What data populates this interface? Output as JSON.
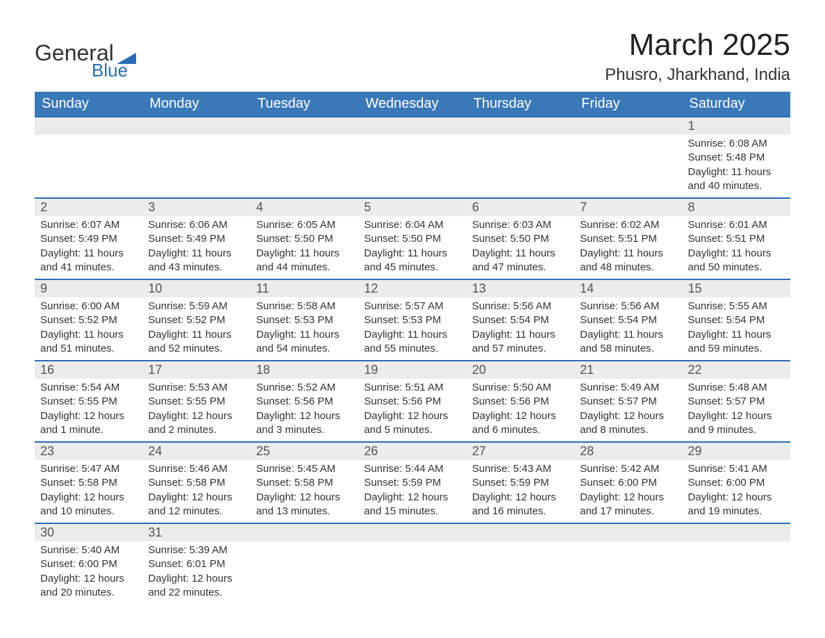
{
  "logo": {
    "text1": "General",
    "text2": "Blue",
    "brand_color": "#2a6db3"
  },
  "header": {
    "title": "March 2025",
    "location": "Phusro, Jharkhand, India"
  },
  "calendar": {
    "header_bg": "#3b78b8",
    "header_fg": "#ffffff",
    "daynum_bg": "#ececec",
    "row_border": "#2a6db3",
    "text_color": "#333333",
    "days": [
      "Sunday",
      "Monday",
      "Tuesday",
      "Wednesday",
      "Thursday",
      "Friday",
      "Saturday"
    ],
    "weeks": [
      [
        null,
        null,
        null,
        null,
        null,
        null,
        {
          "n": "1",
          "sr": "Sunrise: 6:08 AM",
          "ss": "Sunset: 5:48 PM",
          "d1": "Daylight: 11 hours",
          "d2": "and 40 minutes."
        }
      ],
      [
        {
          "n": "2",
          "sr": "Sunrise: 6:07 AM",
          "ss": "Sunset: 5:49 PM",
          "d1": "Daylight: 11 hours",
          "d2": "and 41 minutes."
        },
        {
          "n": "3",
          "sr": "Sunrise: 6:06 AM",
          "ss": "Sunset: 5:49 PM",
          "d1": "Daylight: 11 hours",
          "d2": "and 43 minutes."
        },
        {
          "n": "4",
          "sr": "Sunrise: 6:05 AM",
          "ss": "Sunset: 5:50 PM",
          "d1": "Daylight: 11 hours",
          "d2": "and 44 minutes."
        },
        {
          "n": "5",
          "sr": "Sunrise: 6:04 AM",
          "ss": "Sunset: 5:50 PM",
          "d1": "Daylight: 11 hours",
          "d2": "and 45 minutes."
        },
        {
          "n": "6",
          "sr": "Sunrise: 6:03 AM",
          "ss": "Sunset: 5:50 PM",
          "d1": "Daylight: 11 hours",
          "d2": "and 47 minutes."
        },
        {
          "n": "7",
          "sr": "Sunrise: 6:02 AM",
          "ss": "Sunset: 5:51 PM",
          "d1": "Daylight: 11 hours",
          "d2": "and 48 minutes."
        },
        {
          "n": "8",
          "sr": "Sunrise: 6:01 AM",
          "ss": "Sunset: 5:51 PM",
          "d1": "Daylight: 11 hours",
          "d2": "and 50 minutes."
        }
      ],
      [
        {
          "n": "9",
          "sr": "Sunrise: 6:00 AM",
          "ss": "Sunset: 5:52 PM",
          "d1": "Daylight: 11 hours",
          "d2": "and 51 minutes."
        },
        {
          "n": "10",
          "sr": "Sunrise: 5:59 AM",
          "ss": "Sunset: 5:52 PM",
          "d1": "Daylight: 11 hours",
          "d2": "and 52 minutes."
        },
        {
          "n": "11",
          "sr": "Sunrise: 5:58 AM",
          "ss": "Sunset: 5:53 PM",
          "d1": "Daylight: 11 hours",
          "d2": "and 54 minutes."
        },
        {
          "n": "12",
          "sr": "Sunrise: 5:57 AM",
          "ss": "Sunset: 5:53 PM",
          "d1": "Daylight: 11 hours",
          "d2": "and 55 minutes."
        },
        {
          "n": "13",
          "sr": "Sunrise: 5:56 AM",
          "ss": "Sunset: 5:54 PM",
          "d1": "Daylight: 11 hours",
          "d2": "and 57 minutes."
        },
        {
          "n": "14",
          "sr": "Sunrise: 5:56 AM",
          "ss": "Sunset: 5:54 PM",
          "d1": "Daylight: 11 hours",
          "d2": "and 58 minutes."
        },
        {
          "n": "15",
          "sr": "Sunrise: 5:55 AM",
          "ss": "Sunset: 5:54 PM",
          "d1": "Daylight: 11 hours",
          "d2": "and 59 minutes."
        }
      ],
      [
        {
          "n": "16",
          "sr": "Sunrise: 5:54 AM",
          "ss": "Sunset: 5:55 PM",
          "d1": "Daylight: 12 hours",
          "d2": "and 1 minute."
        },
        {
          "n": "17",
          "sr": "Sunrise: 5:53 AM",
          "ss": "Sunset: 5:55 PM",
          "d1": "Daylight: 12 hours",
          "d2": "and 2 minutes."
        },
        {
          "n": "18",
          "sr": "Sunrise: 5:52 AM",
          "ss": "Sunset: 5:56 PM",
          "d1": "Daylight: 12 hours",
          "d2": "and 3 minutes."
        },
        {
          "n": "19",
          "sr": "Sunrise: 5:51 AM",
          "ss": "Sunset: 5:56 PM",
          "d1": "Daylight: 12 hours",
          "d2": "and 5 minutes."
        },
        {
          "n": "20",
          "sr": "Sunrise: 5:50 AM",
          "ss": "Sunset: 5:56 PM",
          "d1": "Daylight: 12 hours",
          "d2": "and 6 minutes."
        },
        {
          "n": "21",
          "sr": "Sunrise: 5:49 AM",
          "ss": "Sunset: 5:57 PM",
          "d1": "Daylight: 12 hours",
          "d2": "and 8 minutes."
        },
        {
          "n": "22",
          "sr": "Sunrise: 5:48 AM",
          "ss": "Sunset: 5:57 PM",
          "d1": "Daylight: 12 hours",
          "d2": "and 9 minutes."
        }
      ],
      [
        {
          "n": "23",
          "sr": "Sunrise: 5:47 AM",
          "ss": "Sunset: 5:58 PM",
          "d1": "Daylight: 12 hours",
          "d2": "and 10 minutes."
        },
        {
          "n": "24",
          "sr": "Sunrise: 5:46 AM",
          "ss": "Sunset: 5:58 PM",
          "d1": "Daylight: 12 hours",
          "d2": "and 12 minutes."
        },
        {
          "n": "25",
          "sr": "Sunrise: 5:45 AM",
          "ss": "Sunset: 5:58 PM",
          "d1": "Daylight: 12 hours",
          "d2": "and 13 minutes."
        },
        {
          "n": "26",
          "sr": "Sunrise: 5:44 AM",
          "ss": "Sunset: 5:59 PM",
          "d1": "Daylight: 12 hours",
          "d2": "and 15 minutes."
        },
        {
          "n": "27",
          "sr": "Sunrise: 5:43 AM",
          "ss": "Sunset: 5:59 PM",
          "d1": "Daylight: 12 hours",
          "d2": "and 16 minutes."
        },
        {
          "n": "28",
          "sr": "Sunrise: 5:42 AM",
          "ss": "Sunset: 6:00 PM",
          "d1": "Daylight: 12 hours",
          "d2": "and 17 minutes."
        },
        {
          "n": "29",
          "sr": "Sunrise: 5:41 AM",
          "ss": "Sunset: 6:00 PM",
          "d1": "Daylight: 12 hours",
          "d2": "and 19 minutes."
        }
      ],
      [
        {
          "n": "30",
          "sr": "Sunrise: 5:40 AM",
          "ss": "Sunset: 6:00 PM",
          "d1": "Daylight: 12 hours",
          "d2": "and 20 minutes."
        },
        {
          "n": "31",
          "sr": "Sunrise: 5:39 AM",
          "ss": "Sunset: 6:01 PM",
          "d1": "Daylight: 12 hours",
          "d2": "and 22 minutes."
        },
        null,
        null,
        null,
        null,
        null
      ]
    ]
  }
}
